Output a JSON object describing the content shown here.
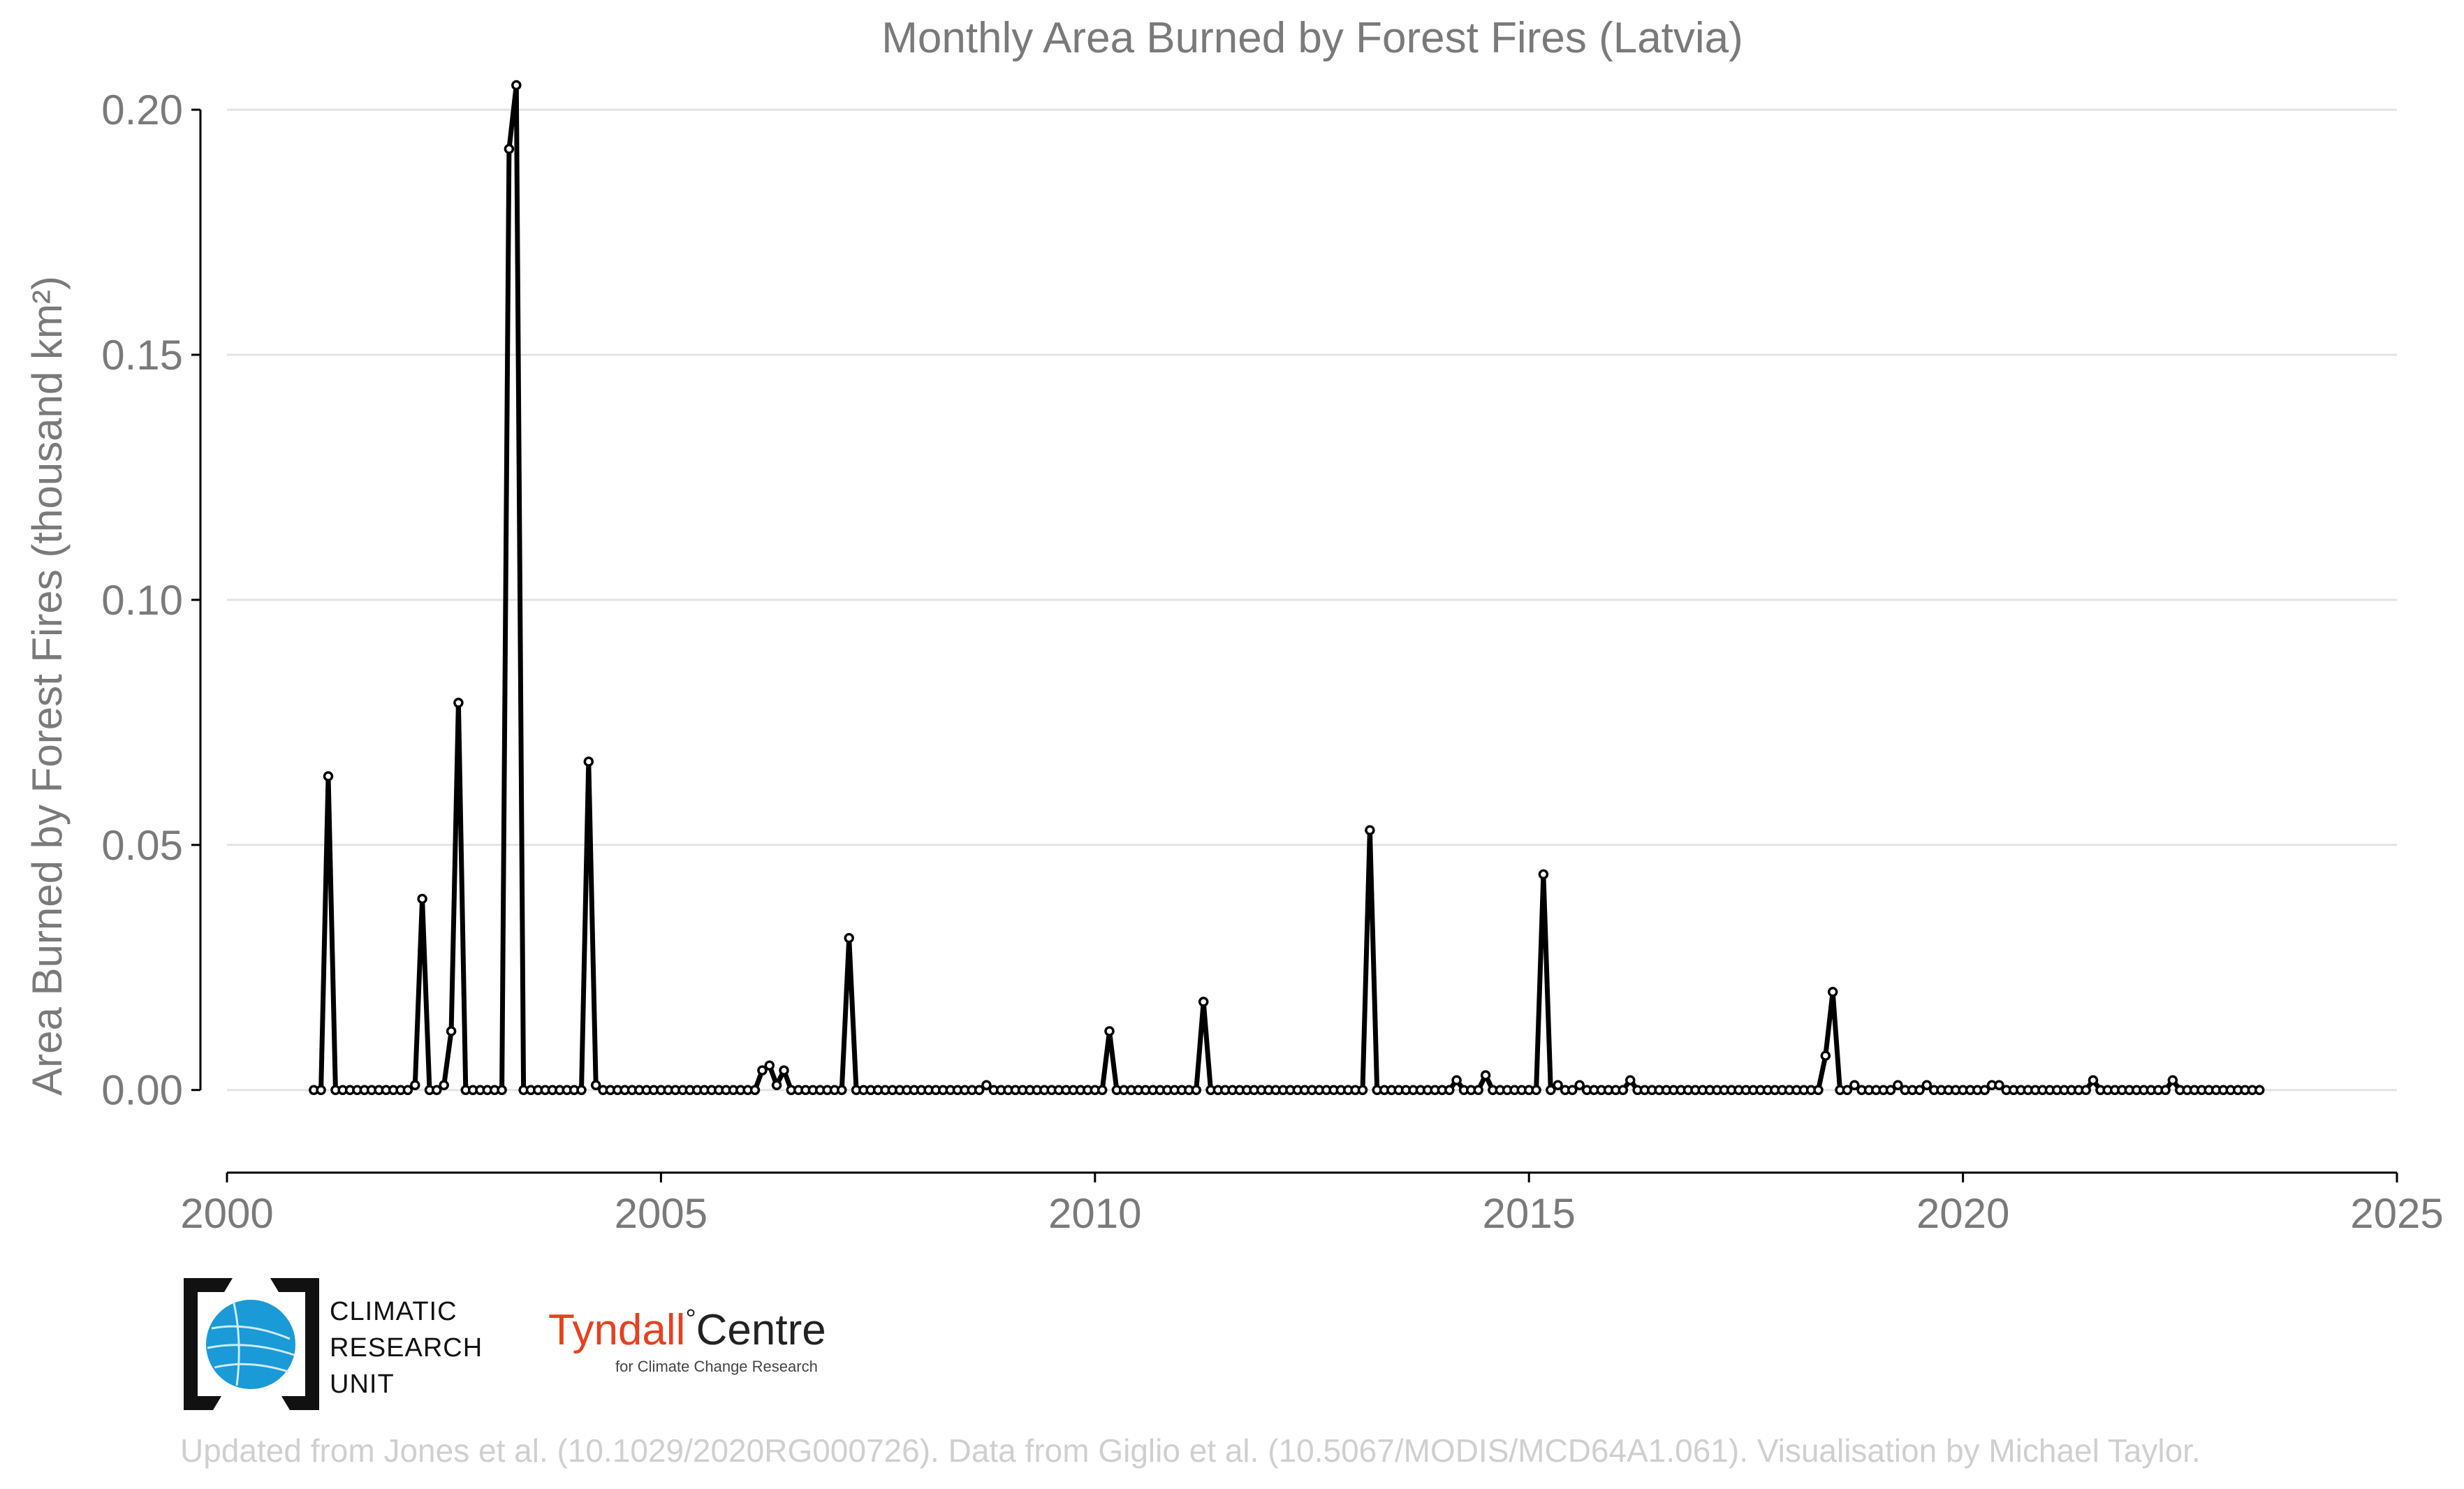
{
  "chart_data": {
    "type": "line",
    "title": "Monthly Area Burned by Forest Fires (Latvia)",
    "xlabel": "",
    "ylabel": "Area Burned by Forest Fires (thousand km²)",
    "xlim": [
      2000,
      2025
    ],
    "ylim": [
      -0.017,
      0.206
    ],
    "x_ticks": [
      "2000",
      "2005",
      "2010",
      "2015",
      "2020",
      "2025"
    ],
    "y_ticks": [
      "0.00",
      "0.05",
      "0.10",
      "0.15",
      "0.20"
    ],
    "grid": "horizontal",
    "start": "2001-01",
    "frequency": "monthly",
    "series": [
      {
        "color": "#000000",
        "values": [
          0,
          0,
          0.064,
          0,
          0,
          0,
          0,
          0,
          0,
          0,
          0,
          0,
          0,
          0,
          0.001,
          0.039,
          0,
          0,
          0.001,
          0.012,
          0.079,
          0,
          0,
          0,
          0,
          0,
          0,
          0.192,
          0.205,
          0,
          0,
          0,
          0,
          0,
          0,
          0,
          0,
          0,
          0.067,
          0.001,
          0,
          0,
          0,
          0,
          0,
          0,
          0,
          0,
          0,
          0,
          0,
          0,
          0,
          0,
          0,
          0,
          0,
          0,
          0,
          0,
          0,
          0,
          0.004,
          0.005,
          0.001,
          0.004,
          0,
          0,
          0,
          0,
          0,
          0,
          0,
          0,
          0.031,
          0,
          0,
          0,
          0,
          0,
          0,
          0,
          0,
          0,
          0,
          0,
          0,
          0,
          0,
          0,
          0,
          0,
          0,
          0.001,
          0,
          0,
          0,
          0,
          0,
          0,
          0,
          0,
          0,
          0,
          0,
          0,
          0,
          0,
          0,
          0,
          0.012,
          0,
          0,
          0,
          0,
          0,
          0,
          0,
          0,
          0,
          0,
          0,
          0,
          0.018,
          0,
          0,
          0,
          0,
          0,
          0,
          0,
          0,
          0,
          0,
          0,
          0,
          0,
          0,
          0,
          0,
          0,
          0,
          0,
          0,
          0,
          0,
          0.053,
          0,
          0,
          0,
          0,
          0,
          0,
          0,
          0,
          0,
          0,
          0,
          0.002,
          0,
          0,
          0,
          0.003,
          0,
          0,
          0,
          0,
          0,
          0,
          0,
          0.044,
          0,
          0.001,
          0,
          0,
          0.001,
          0,
          0,
          0,
          0,
          0,
          0,
          0.002,
          0,
          0,
          0,
          0,
          0,
          0,
          0,
          0,
          0,
          0,
          0,
          0,
          0,
          0,
          0,
          0,
          0,
          0,
          0,
          0,
          0,
          0,
          0,
          0,
          0,
          0,
          0.007,
          0.02,
          0,
          0,
          0.001,
          0,
          0,
          0,
          0,
          0,
          0.001,
          0,
          0,
          0,
          0.001,
          0,
          0,
          0,
          0,
          0,
          0,
          0,
          0,
          0.001,
          0.001,
          0,
          0,
          0,
          0,
          0,
          0,
          0,
          0,
          0,
          0,
          0,
          0,
          0.002,
          0,
          0,
          0,
          0,
          0,
          0,
          0,
          0,
          0,
          0,
          0.002,
          0,
          0,
          0,
          0,
          0,
          0,
          0,
          0,
          0,
          0,
          0,
          0
        ]
      }
    ]
  },
  "logos": {
    "cru_lines": [
      "CLIMATIC",
      "RESEARCH",
      "UNIT"
    ],
    "tyndall_main": "Tyndall",
    "tyndall_degree": "°",
    "tyndall_centre": "Centre",
    "tyndall_sub": "for Climate Change Research"
  },
  "credit": "Updated from Jones et al. (10.1029/2020RG000726). Data from Giglio et al. (10.5067/MODIS/MCD64A1.061). Visualisation by Michael Taylor."
}
